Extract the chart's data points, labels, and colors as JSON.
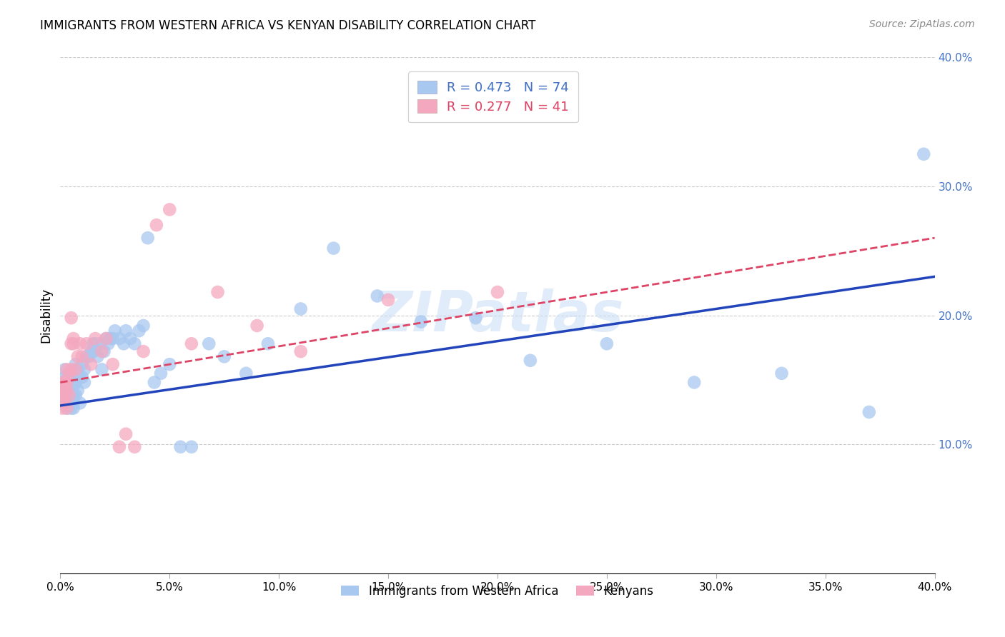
{
  "title": "IMMIGRANTS FROM WESTERN AFRICA VS KENYAN DISABILITY CORRELATION CHART",
  "source": "Source: ZipAtlas.com",
  "xlabel_label": "Immigrants from Western Africa",
  "ylabel_label": "Disability",
  "x_min": 0.0,
  "x_max": 0.4,
  "y_min": 0.0,
  "y_max": 0.4,
  "x_ticks": [
    0.0,
    0.05,
    0.1,
    0.15,
    0.2,
    0.25,
    0.3,
    0.35,
    0.4
  ],
  "y_ticks": [
    0.1,
    0.2,
    0.3,
    0.4
  ],
  "legend_r1": "R = 0.473",
  "legend_n1": "N = 74",
  "legend_r2": "R = 0.277",
  "legend_n2": "N = 41",
  "blue_color": "#A8C8F0",
  "pink_color": "#F4A8C0",
  "blue_line_color": "#2244BB",
  "pink_line_color": "#DD4466",
  "watermark": "ZIPatlas",
  "blue_x": [
    0.001,
    0.001,
    0.002,
    0.002,
    0.002,
    0.003,
    0.003,
    0.003,
    0.003,
    0.004,
    0.004,
    0.004,
    0.005,
    0.005,
    0.005,
    0.005,
    0.006,
    0.006,
    0.006,
    0.006,
    0.007,
    0.007,
    0.007,
    0.008,
    0.008,
    0.009,
    0.009,
    0.01,
    0.01,
    0.011,
    0.011,
    0.012,
    0.013,
    0.014,
    0.015,
    0.015,
    0.016,
    0.017,
    0.018,
    0.019,
    0.02,
    0.021,
    0.022,
    0.023,
    0.024,
    0.025,
    0.027,
    0.029,
    0.03,
    0.032,
    0.034,
    0.036,
    0.038,
    0.04,
    0.043,
    0.046,
    0.05,
    0.055,
    0.06,
    0.068,
    0.075,
    0.085,
    0.095,
    0.11,
    0.125,
    0.145,
    0.165,
    0.19,
    0.215,
    0.25,
    0.29,
    0.33,
    0.37,
    0.395
  ],
  "blue_y": [
    0.148,
    0.135,
    0.152,
    0.138,
    0.158,
    0.142,
    0.132,
    0.128,
    0.145,
    0.14,
    0.13,
    0.155,
    0.142,
    0.128,
    0.14,
    0.152,
    0.138,
    0.132,
    0.128,
    0.145,
    0.138,
    0.148,
    0.162,
    0.158,
    0.142,
    0.152,
    0.132,
    0.162,
    0.152,
    0.158,
    0.148,
    0.168,
    0.168,
    0.172,
    0.172,
    0.178,
    0.178,
    0.168,
    0.178,
    0.158,
    0.172,
    0.182,
    0.178,
    0.182,
    0.182,
    0.188,
    0.182,
    0.178,
    0.188,
    0.182,
    0.178,
    0.188,
    0.192,
    0.26,
    0.148,
    0.155,
    0.162,
    0.098,
    0.098,
    0.178,
    0.168,
    0.155,
    0.178,
    0.205,
    0.252,
    0.215,
    0.195,
    0.198,
    0.165,
    0.178,
    0.148,
    0.155,
    0.125,
    0.325
  ],
  "pink_x": [
    0.001,
    0.001,
    0.001,
    0.001,
    0.002,
    0.002,
    0.002,
    0.002,
    0.003,
    0.003,
    0.003,
    0.003,
    0.004,
    0.004,
    0.005,
    0.005,
    0.005,
    0.006,
    0.006,
    0.007,
    0.008,
    0.009,
    0.01,
    0.012,
    0.014,
    0.016,
    0.019,
    0.021,
    0.024,
    0.027,
    0.03,
    0.034,
    0.038,
    0.044,
    0.05,
    0.06,
    0.072,
    0.09,
    0.11,
    0.15,
    0.2
  ],
  "pink_y": [
    0.135,
    0.148,
    0.128,
    0.142,
    0.138,
    0.142,
    0.148,
    0.132,
    0.158,
    0.142,
    0.128,
    0.148,
    0.155,
    0.138,
    0.158,
    0.178,
    0.198,
    0.178,
    0.182,
    0.158,
    0.168,
    0.178,
    0.168,
    0.178,
    0.162,
    0.182,
    0.172,
    0.182,
    0.162,
    0.098,
    0.108,
    0.098,
    0.172,
    0.27,
    0.282,
    0.178,
    0.218,
    0.192,
    0.172,
    0.212,
    0.218
  ],
  "blue_line_x0": 0.0,
  "blue_line_y0": 0.13,
  "blue_line_x1": 0.4,
  "blue_line_y1": 0.23,
  "pink_line_x0": 0.0,
  "pink_line_y0": 0.148,
  "pink_line_x1": 0.4,
  "pink_line_y1": 0.26
}
